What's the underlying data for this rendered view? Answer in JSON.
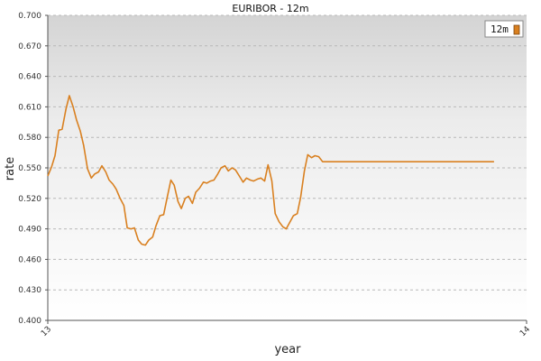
{
  "chart_data": {
    "type": "line",
    "title": "EURIBOR - 12m",
    "xlabel": "year",
    "ylabel": "rate",
    "xlim": [
      13,
      14
    ],
    "ylim": [
      0.4,
      0.7
    ],
    "x_ticks": [
      "13",
      "14"
    ],
    "y_ticks": [
      "0.400",
      "0.430",
      "0.460",
      "0.490",
      "0.520",
      "0.550",
      "0.580",
      "0.610",
      "0.640",
      "0.670",
      "0.700"
    ],
    "grid": true,
    "legend": {
      "position": "top-right",
      "entries": [
        "12m"
      ]
    },
    "colors": {
      "line": "#d98020",
      "plot_bg_top": "#d4d4d4",
      "plot_bg_bottom": "#ffffff",
      "grid": "#b8b8b8"
    },
    "series": [
      {
        "name": "12m",
        "x": [
          13.0,
          13.008,
          13.015,
          13.023,
          13.03,
          13.038,
          13.045,
          13.053,
          13.06,
          13.068,
          13.075,
          13.083,
          13.091,
          13.098,
          13.106,
          13.113,
          13.121,
          13.128,
          13.136,
          13.143,
          13.151,
          13.159,
          13.166,
          13.174,
          13.181,
          13.189,
          13.196,
          13.204,
          13.211,
          13.219,
          13.226,
          13.234,
          13.242,
          13.249,
          13.257,
          13.264,
          13.272,
          13.279,
          13.287,
          13.294,
          13.302,
          13.309,
          13.317,
          13.325,
          13.332,
          13.34,
          13.347,
          13.355,
          13.362,
          13.37,
          13.377,
          13.385,
          13.392,
          13.4,
          13.408,
          13.415,
          13.423,
          13.43,
          13.438,
          13.445,
          13.453,
          13.46,
          13.468,
          13.475,
          13.483,
          13.491,
          13.498,
          13.506,
          13.513,
          13.521,
          13.528,
          13.536,
          13.543,
          13.551,
          13.558,
          13.566,
          13.574,
          13.581,
          13.589,
          13.596,
          13.604,
          13.611,
          13.619,
          13.626,
          13.634,
          13.642,
          13.649,
          13.657,
          13.664,
          13.672,
          13.679,
          13.687,
          13.694,
          13.702,
          13.709,
          13.717,
          13.725,
          13.732,
          13.74,
          13.747,
          13.755,
          13.762,
          13.77,
          13.777,
          13.785,
          13.792,
          13.8,
          13.808,
          13.815,
          13.823,
          13.83,
          13.838,
          13.845,
          13.853,
          13.86,
          13.868,
          13.875,
          13.883,
          13.891,
          13.898,
          13.906,
          13.913,
          13.921,
          13.928,
          13.932
        ],
        "values": [
          0.542,
          0.551,
          0.562,
          0.587,
          0.588,
          0.608,
          0.621,
          0.61,
          0.597,
          0.586,
          0.572,
          0.549,
          0.54,
          0.544,
          0.546,
          0.552,
          0.546,
          0.538,
          0.534,
          0.529,
          0.52,
          0.513,
          0.491,
          0.49,
          0.491,
          0.479,
          0.475,
          0.474,
          0.479,
          0.482,
          0.493,
          0.503,
          0.504,
          0.52,
          0.538,
          0.533,
          0.517,
          0.51,
          0.52,
          0.522,
          0.515,
          0.526,
          0.53,
          0.536,
          0.535,
          0.537,
          0.538,
          0.544,
          0.55,
          0.552,
          0.547,
          0.55,
          0.548,
          0.542,
          0.536,
          0.54,
          0.538,
          0.537,
          0.539,
          0.54,
          0.537,
          0.553,
          0.537,
          0.505,
          0.497,
          0.492,
          0.49,
          0.497,
          0.503,
          0.505,
          0.521,
          0.547,
          0.563,
          0.56,
          0.562,
          0.561,
          0.556,
          0.556,
          0.556,
          0.556,
          0.556,
          0.556,
          0.556,
          0.556,
          0.556,
          0.556,
          0.556,
          0.556,
          0.556,
          0.556,
          0.556,
          0.556,
          0.556,
          0.556,
          0.556,
          0.556,
          0.556,
          0.556,
          0.556,
          0.556,
          0.556,
          0.556,
          0.556,
          0.556,
          0.556,
          0.556,
          0.556,
          0.556,
          0.556,
          0.556,
          0.556,
          0.556,
          0.556,
          0.556,
          0.556,
          0.556,
          0.556,
          0.556,
          0.556,
          0.556,
          0.556,
          0.556,
          0.556,
          0.556,
          0.556
        ]
      }
    ]
  }
}
